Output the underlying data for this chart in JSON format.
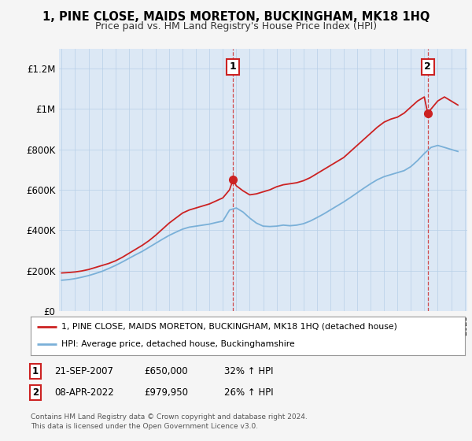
{
  "title": "1, PINE CLOSE, MAIDS MORETON, BUCKINGHAM, MK18 1HQ",
  "subtitle": "Price paid vs. HM Land Registry's House Price Index (HPI)",
  "footer": "Contains HM Land Registry data © Crown copyright and database right 2024.\nThis data is licensed under the Open Government Licence v3.0.",
  "legend_line1": "1, PINE CLOSE, MAIDS MORETON, BUCKINGHAM, MK18 1HQ (detached house)",
  "legend_line2": "HPI: Average price, detached house, Buckinghamshire",
  "sale1_label": "1",
  "sale1_date": "21-SEP-2007",
  "sale1_price": "£650,000",
  "sale1_hpi": "32% ↑ HPI",
  "sale2_label": "2",
  "sale2_date": "08-APR-2022",
  "sale2_price": "£979,950",
  "sale2_hpi": "26% ↑ HPI",
  "red_color": "#cc2222",
  "blue_color": "#7ab0d8",
  "background_color": "#f5f5f5",
  "plot_bg_color": "#dce8f5",
  "ylim": [
    0,
    1300000
  ],
  "yticks": [
    0,
    200000,
    400000,
    600000,
    800000,
    1000000,
    1200000
  ],
  "ytick_labels": [
    "£0",
    "£200K",
    "£400K",
    "£600K",
    "£800K",
    "£1M",
    "£1.2M"
  ],
  "sale1_x": 2007.75,
  "sale1_y": 650000,
  "sale2_x": 2022.25,
  "sale2_y": 979950,
  "red_line_years": [
    1995.0,
    1995.5,
    1996.0,
    1996.5,
    1997.0,
    1997.5,
    1998.0,
    1998.5,
    1999.0,
    1999.5,
    2000.0,
    2000.5,
    2001.0,
    2001.5,
    2002.0,
    2002.5,
    2003.0,
    2003.5,
    2004.0,
    2004.5,
    2005.0,
    2005.5,
    2006.0,
    2006.5,
    2007.0,
    2007.5,
    2007.75,
    2008.0,
    2008.5,
    2009.0,
    2009.5,
    2010.0,
    2010.5,
    2011.0,
    2011.5,
    2012.0,
    2012.5,
    2013.0,
    2013.5,
    2014.0,
    2014.5,
    2015.0,
    2015.5,
    2016.0,
    2016.5,
    2017.0,
    2017.5,
    2018.0,
    2018.5,
    2019.0,
    2019.5,
    2020.0,
    2020.5,
    2021.0,
    2021.5,
    2022.0,
    2022.25,
    2022.5,
    2023.0,
    2023.5,
    2024.0,
    2024.5
  ],
  "red_line_values": [
    188000,
    190000,
    193000,
    198000,
    205000,
    215000,
    225000,
    235000,
    248000,
    265000,
    285000,
    305000,
    325000,
    348000,
    375000,
    405000,
    435000,
    460000,
    485000,
    500000,
    510000,
    520000,
    530000,
    545000,
    560000,
    600000,
    650000,
    620000,
    595000,
    575000,
    580000,
    590000,
    600000,
    615000,
    625000,
    630000,
    635000,
    645000,
    660000,
    680000,
    700000,
    720000,
    740000,
    760000,
    790000,
    820000,
    850000,
    880000,
    910000,
    935000,
    950000,
    960000,
    980000,
    1010000,
    1040000,
    1060000,
    979950,
    1000000,
    1040000,
    1060000,
    1040000,
    1020000
  ],
  "blue_line_years": [
    1995.0,
    1995.5,
    1996.0,
    1996.5,
    1997.0,
    1997.5,
    1998.0,
    1998.5,
    1999.0,
    1999.5,
    2000.0,
    2000.5,
    2001.0,
    2001.5,
    2002.0,
    2002.5,
    2003.0,
    2003.5,
    2004.0,
    2004.5,
    2005.0,
    2005.5,
    2006.0,
    2006.5,
    2007.0,
    2007.5,
    2008.0,
    2008.5,
    2009.0,
    2009.5,
    2010.0,
    2010.5,
    2011.0,
    2011.5,
    2012.0,
    2012.5,
    2013.0,
    2013.5,
    2014.0,
    2014.5,
    2015.0,
    2015.5,
    2016.0,
    2016.5,
    2017.0,
    2017.5,
    2018.0,
    2018.5,
    2019.0,
    2019.5,
    2020.0,
    2020.5,
    2021.0,
    2021.5,
    2022.0,
    2022.5,
    2023.0,
    2023.5,
    2024.0,
    2024.5
  ],
  "blue_line_values": [
    152000,
    155000,
    160000,
    167000,
    175000,
    185000,
    196000,
    210000,
    225000,
    242000,
    260000,
    278000,
    295000,
    315000,
    335000,
    355000,
    374000,
    390000,
    405000,
    415000,
    420000,
    425000,
    430000,
    438000,
    445000,
    500000,
    510000,
    490000,
    460000,
    435000,
    420000,
    418000,
    420000,
    425000,
    422000,
    425000,
    432000,
    445000,
    462000,
    480000,
    500000,
    520000,
    540000,
    562000,
    585000,
    608000,
    630000,
    650000,
    665000,
    675000,
    685000,
    695000,
    715000,
    745000,
    780000,
    810000,
    820000,
    810000,
    800000,
    790000
  ],
  "xmin": 1994.8,
  "xmax": 2025.2
}
